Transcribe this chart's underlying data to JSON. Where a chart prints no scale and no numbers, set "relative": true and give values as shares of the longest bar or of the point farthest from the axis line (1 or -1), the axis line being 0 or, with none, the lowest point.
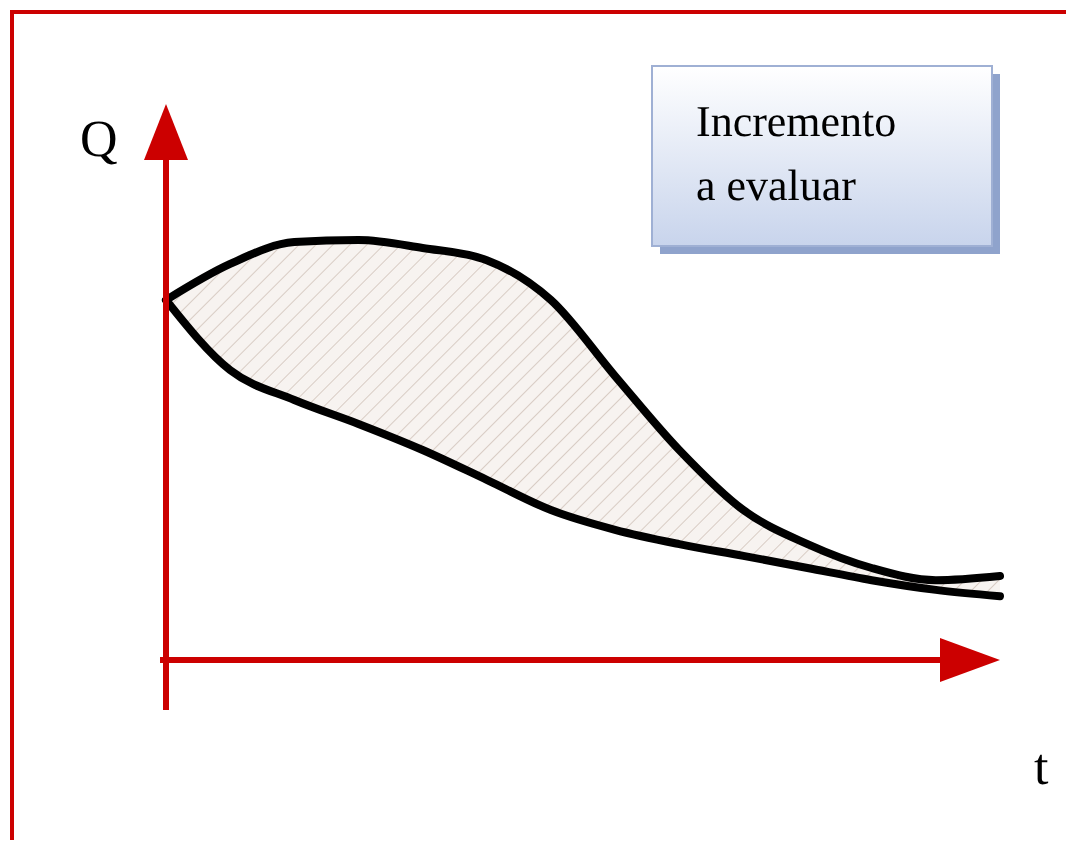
{
  "chart_data": {
    "type": "line",
    "relative": true,
    "xlabel": "t",
    "ylabel": "Q",
    "categories": [
      null,
      null,
      null,
      null,
      null,
      null,
      null,
      null,
      null,
      null,
      null,
      null,
      null,
      null
    ],
    "series": [
      {
        "color": "#000000",
        "values": [
          0.857,
          0.943,
          0.995,
          1.0,
          0.981,
          0.952,
          0.857,
          0.676,
          0.5,
          0.357,
          0.276,
          0.219,
          0.19,
          0.2
        ],
        "lower": [
          0.857,
          0.69,
          0.619,
          0.562,
          0.5,
          0.429,
          0.357,
          0.31,
          0.276,
          0.248,
          0.219,
          0.19,
          0.167,
          0.152
        ],
        "upper": [
          0.857,
          0.943,
          0.995,
          1.0,
          0.981,
          0.952,
          0.857,
          0.676,
          0.5,
          0.357,
          0.276,
          0.219,
          0.19,
          0.2
        ]
      },
      {
        "color": "#000000",
        "values": [
          0.857,
          0.69,
          0.619,
          0.562,
          0.5,
          0.429,
          0.357,
          0.31,
          0.276,
          0.248,
          0.219,
          0.19,
          0.167,
          0.152
        ]
      }
    ],
    "annotations": [
      "Incremento a evaluar"
    ]
  }
}
